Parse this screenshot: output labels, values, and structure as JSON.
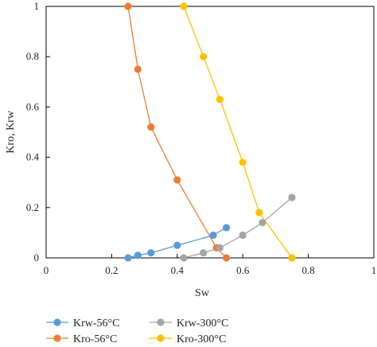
{
  "chart_data": {
    "type": "line",
    "title": "",
    "xlabel": "Sw",
    "ylabel": "Kro, Krw",
    "xlim": [
      0,
      1
    ],
    "ylim": [
      0,
      1
    ],
    "x_ticks": [
      0,
      0.2,
      0.4,
      0.6,
      0.8,
      1
    ],
    "x_tick_labels": [
      "0",
      "0.2",
      "0.4",
      "0.6",
      "0.8",
      "1"
    ],
    "y_ticks": [
      0,
      0.2,
      0.4,
      0.6,
      0.8,
      1
    ],
    "y_tick_labels": [
      "0",
      "0.2",
      "0.4",
      "0.6",
      "0.8",
      "1"
    ],
    "grid": false,
    "legend_position": "bottom",
    "series": [
      {
        "name": "Krw-56°C",
        "color": "#5B9BD5",
        "x": [
          0.25,
          0.28,
          0.32,
          0.4,
          0.51,
          0.55
        ],
        "y": [
          0.0,
          0.01,
          0.02,
          0.05,
          0.09,
          0.12
        ]
      },
      {
        "name": "Kro-56°C",
        "color": "#ED7D31",
        "x": [
          0.25,
          0.28,
          0.32,
          0.4,
          0.52,
          0.55
        ],
        "y": [
          1.0,
          0.75,
          0.52,
          0.31,
          0.04,
          0.0
        ]
      },
      {
        "name": "Krw-300°C",
        "color": "#A5A5A5",
        "x": [
          0.42,
          0.48,
          0.53,
          0.6,
          0.66,
          0.75
        ],
        "y": [
          0.0,
          0.02,
          0.04,
          0.09,
          0.14,
          0.24
        ]
      },
      {
        "name": "Kro-300°C",
        "color": "#FFC000",
        "x": [
          0.42,
          0.48,
          0.53,
          0.6,
          0.65,
          0.75
        ],
        "y": [
          1.0,
          0.8,
          0.63,
          0.38,
          0.18,
          0.0
        ]
      }
    ]
  }
}
